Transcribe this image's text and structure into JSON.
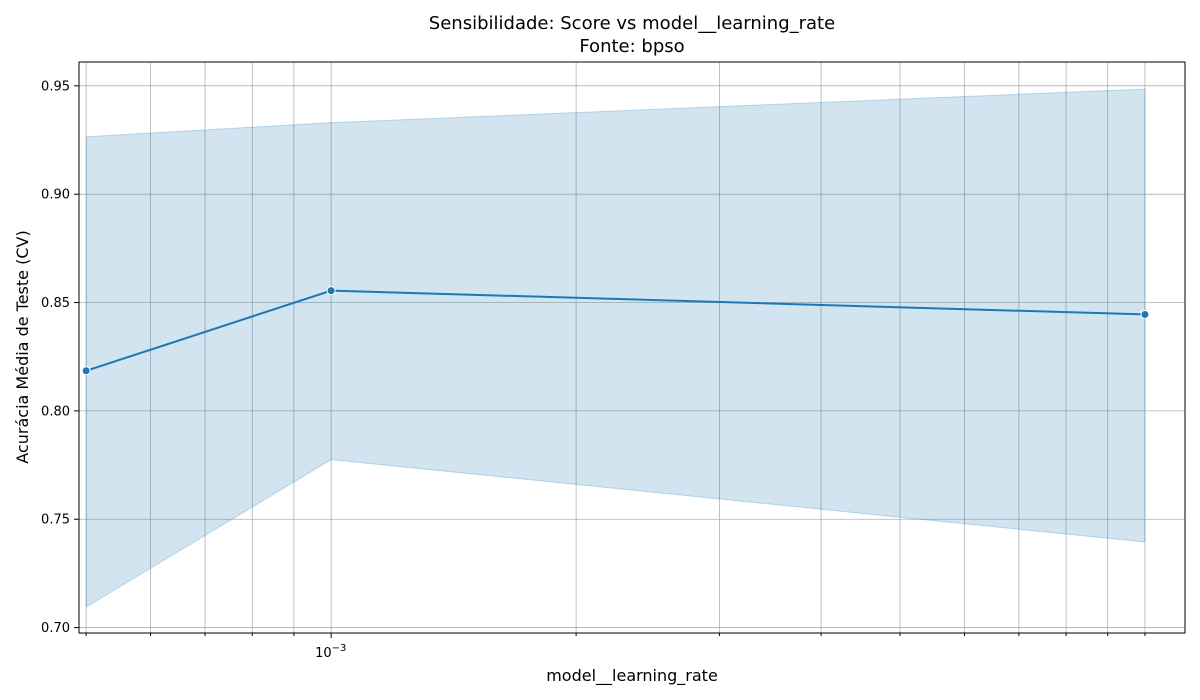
{
  "chart_data": {
    "type": "line",
    "title": "Sensibilidade: Score vs model__learning_rate",
    "subtitle": "Fonte: bpso",
    "xlabel": "model__learning_rate",
    "ylabel": "Acurácia Média de Teste (CV)",
    "x_scale": "log",
    "xlim": [
      0.00049,
      0.0112
    ],
    "ylim": [
      0.6975,
      0.961
    ],
    "y_ticks": [
      0.7,
      0.75,
      0.8,
      0.85,
      0.9,
      0.95
    ],
    "y_tick_labels": [
      "0.70",
      "0.75",
      "0.80",
      "0.85",
      "0.90",
      "0.95"
    ],
    "x_major_ticks": [
      0.001
    ],
    "x_major_tick_labels": [
      "10",
      "−3"
    ],
    "x_minor_ticks": [
      0.0005,
      0.0006,
      0.0007,
      0.0008,
      0.0009,
      0.002,
      0.003,
      0.004,
      0.005,
      0.006,
      0.007,
      0.008,
      0.009,
      0.01
    ],
    "grid": true,
    "series": [
      {
        "x": [
          0.0005,
          0.001,
          0.01
        ],
        "values": [
          0.8185,
          0.8555,
          0.8445
        ],
        "ci_lower": [
          0.7095,
          0.7775,
          0.7395
        ],
        "ci_upper": [
          0.9265,
          0.933,
          0.9485
        ],
        "color": "#1f77b4",
        "band_color": "#1f77b4",
        "band_opacity": 0.2,
        "marker": "circle"
      }
    ]
  }
}
